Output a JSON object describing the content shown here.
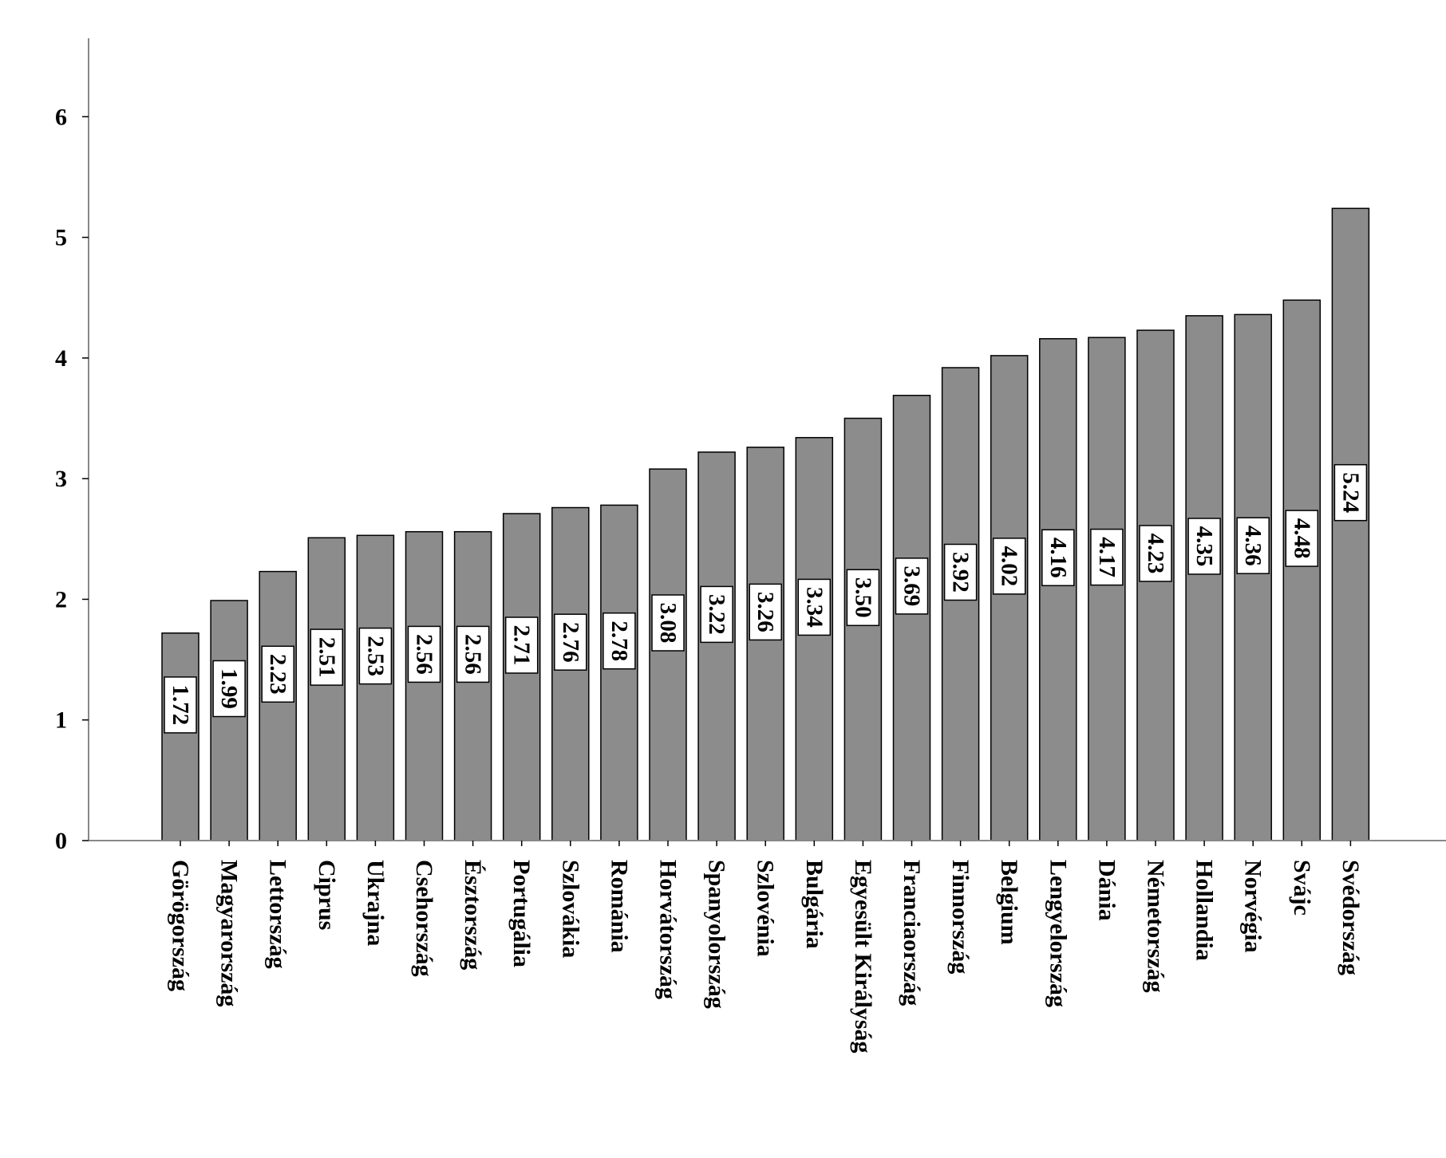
{
  "chart_data": {
    "type": "bar",
    "categories": [
      "Görögország",
      "Magyarország",
      "Lettország",
      "Ciprus",
      "Ukrajna",
      "Csehország",
      "Észtország",
      "Portugália",
      "Szlovákia",
      "Románia",
      "Horvátország",
      "Spanyolország",
      "Szlovénia",
      "Bulgária",
      "Egyesült Királyság",
      "Franciaország",
      "Finnország",
      "Belgium",
      "Lengyelország",
      "Dánia",
      "Németország",
      "Hollandia",
      "Norvégia",
      "Svájc",
      "Svédország"
    ],
    "values": [
      1.72,
      1.99,
      2.23,
      2.51,
      2.53,
      2.56,
      2.56,
      2.71,
      2.76,
      2.78,
      3.08,
      3.22,
      3.26,
      3.34,
      3.5,
      3.69,
      3.92,
      4.02,
      4.16,
      4.17,
      4.23,
      4.35,
      4.36,
      4.48,
      5.24
    ],
    "value_labels": [
      "1.72",
      "1.99",
      "2.23",
      "2.51",
      "2.53",
      "2.56",
      "2.56",
      "2.71",
      "2.76",
      "2.78",
      "3.08",
      "3.22",
      "3.26",
      "3.34",
      "3.50",
      "3.69",
      "3.92",
      "4.02",
      "4.16",
      "4.17",
      "4.23",
      "4.35",
      "4.36",
      "4.48",
      "5.24"
    ],
    "yticks": [
      "0",
      "1",
      "2",
      "3",
      "4",
      "5",
      "6"
    ],
    "ylim": [
      0,
      6.65
    ],
    "title": "",
    "xlabel": "",
    "ylabel": "",
    "grid": false,
    "bar_color": "#8c8c8c",
    "bar_edge_color": "#000000",
    "axis_color": "#888888"
  }
}
